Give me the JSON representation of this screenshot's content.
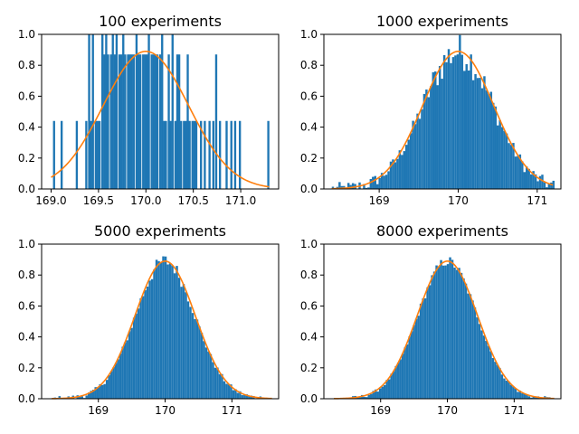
{
  "charts": [
    {
      "type": "histogram",
      "title": "100 experiments",
      "xlim": [
        168.9,
        171.4
      ],
      "ylim": [
        0,
        1.0
      ],
      "xticks": [
        169.0,
        169.5,
        170.0,
        170.5,
        171.0
      ],
      "xtick_labels": [
        "169.0",
        "169.5",
        "170.0",
        "170.5",
        "171.0"
      ],
      "yticks": [
        0.0,
        0.2,
        0.4,
        0.6,
        0.8,
        1.0
      ],
      "ytick_labels": [
        "0.0",
        "0.2",
        "0.4",
        "0.6",
        "0.8",
        "1.0"
      ],
      "bin_width": 0.0225,
      "bars": [
        [
          169.02,
          0.44
        ],
        [
          169.1,
          0.44
        ],
        [
          169.26,
          0.44
        ],
        [
          169.36,
          0.44
        ],
        [
          169.39,
          1.0
        ],
        [
          169.41,
          0.44
        ],
        [
          169.43,
          1.0
        ],
        [
          169.46,
          0.44
        ],
        [
          169.48,
          0.44
        ],
        [
          169.5,
          0.44
        ],
        [
          169.53,
          1.0
        ],
        [
          169.55,
          0.87
        ],
        [
          169.57,
          1.0
        ],
        [
          169.59,
          0.87
        ],
        [
          169.62,
          0.87
        ],
        [
          169.64,
          1.0
        ],
        [
          169.66,
          0.87
        ],
        [
          169.68,
          1.0
        ],
        [
          169.71,
          0.87
        ],
        [
          169.73,
          0.87
        ],
        [
          169.75,
          1.0
        ],
        [
          169.77,
          0.87
        ],
        [
          169.8,
          0.87
        ],
        [
          169.82,
          0.87
        ],
        [
          169.84,
          0.87
        ],
        [
          169.86,
          0.87
        ],
        [
          169.89,
          1.0
        ],
        [
          169.91,
          0.87
        ],
        [
          169.93,
          0.87
        ],
        [
          169.96,
          0.87
        ],
        [
          169.98,
          0.87
        ],
        [
          170.0,
          0.87
        ],
        [
          170.02,
          1.0
        ],
        [
          170.05,
          0.87
        ],
        [
          170.07,
          0.87
        ],
        [
          170.09,
          0.87
        ],
        [
          170.11,
          0.87
        ],
        [
          170.14,
          0.87
        ],
        [
          170.16,
          1.0
        ],
        [
          170.18,
          0.44
        ],
        [
          170.2,
          0.44
        ],
        [
          170.23,
          0.87
        ],
        [
          170.25,
          0.44
        ],
        [
          170.27,
          1.0
        ],
        [
          170.3,
          0.44
        ],
        [
          170.32,
          0.87
        ],
        [
          170.34,
          0.87
        ],
        [
          170.36,
          0.44
        ],
        [
          170.39,
          0.44
        ],
        [
          170.41,
          0.44
        ],
        [
          170.43,
          0.87
        ],
        [
          170.45,
          0.44
        ],
        [
          170.48,
          0.44
        ],
        [
          170.5,
          0.44
        ],
        [
          170.52,
          0.44
        ],
        [
          170.57,
          0.44
        ],
        [
          170.61,
          0.44
        ],
        [
          170.66,
          0.44
        ],
        [
          170.7,
          0.44
        ],
        [
          170.73,
          0.87
        ],
        [
          170.77,
          0.44
        ],
        [
          170.84,
          0.44
        ],
        [
          170.89,
          0.44
        ],
        [
          170.93,
          0.44
        ],
        [
          170.98,
          0.44
        ],
        [
          171.28,
          0.44
        ]
      ],
      "fit": {
        "mean": 170.0,
        "sd": 0.45,
        "peak": 0.89,
        "x_range": [
          169.0,
          171.3
        ]
      }
    },
    {
      "type": "histogram",
      "title": "1000 experiments",
      "xlim": [
        168.3,
        171.3
      ],
      "ylim": [
        0,
        1.0
      ],
      "xticks": [
        169,
        170,
        171
      ],
      "xtick_labels": [
        "169",
        "170",
        "171"
      ],
      "yticks": [
        0.0,
        0.2,
        0.4,
        0.6,
        0.8,
        1.0
      ],
      "ytick_labels": [
        "0.0",
        "0.2",
        "0.4",
        "0.6",
        "0.8",
        "1.0"
      ],
      "bin_width": 0.0282,
      "fill_from": 168.4,
      "fill_to": 171.2,
      "mean": 170.0,
      "sd": 0.445,
      "peak": 0.89,
      "noise": 0.12,
      "fit": {
        "mean": 170.0,
        "sd": 0.45,
        "peak": 0.89,
        "x_range": [
          168.4,
          171.2
        ]
      }
    },
    {
      "type": "histogram",
      "title": "5000 experiments",
      "xlim": [
        168.15,
        171.7
      ],
      "ylim": [
        0,
        1.0
      ],
      "xticks": [
        169,
        170,
        171
      ],
      "xtick_labels": [
        "169",
        "170",
        "171"
      ],
      "yticks": [
        0.0,
        0.2,
        0.4,
        0.6,
        0.8,
        1.0
      ],
      "ytick_labels": [
        "0.0",
        "0.2",
        "0.4",
        "0.6",
        "0.8",
        "1.0"
      ],
      "bin_width": 0.0338,
      "fill_from": 168.3,
      "fill_to": 171.6,
      "mean": 170.0,
      "sd": 0.445,
      "peak": 0.89,
      "noise": 0.05,
      "fit": {
        "mean": 170.0,
        "sd": 0.45,
        "peak": 0.89,
        "x_range": [
          168.3,
          171.6
        ]
      }
    },
    {
      "type": "histogram",
      "title": "8000 experiments",
      "xlim": [
        168.15,
        171.7
      ],
      "ylim": [
        0,
        1.0
      ],
      "xticks": [
        169,
        170,
        171
      ],
      "xtick_labels": [
        "169",
        "170",
        "171"
      ],
      "yticks": [
        0.0,
        0.2,
        0.4,
        0.6,
        0.8,
        1.0
      ],
      "ytick_labels": [
        "0.0",
        "0.2",
        "0.4",
        "0.6",
        "0.8",
        "1.0"
      ],
      "bin_width": 0.0338,
      "fill_from": 168.3,
      "fill_to": 171.6,
      "mean": 170.0,
      "sd": 0.445,
      "peak": 0.89,
      "noise": 0.035,
      "fit": {
        "mean": 170.0,
        "sd": 0.45,
        "peak": 0.89,
        "x_range": [
          168.3,
          171.6
        ]
      }
    }
  ],
  "colors": {
    "bars": "#1f77b4",
    "fit": "#ff7f0e",
    "axes": "#000000"
  }
}
